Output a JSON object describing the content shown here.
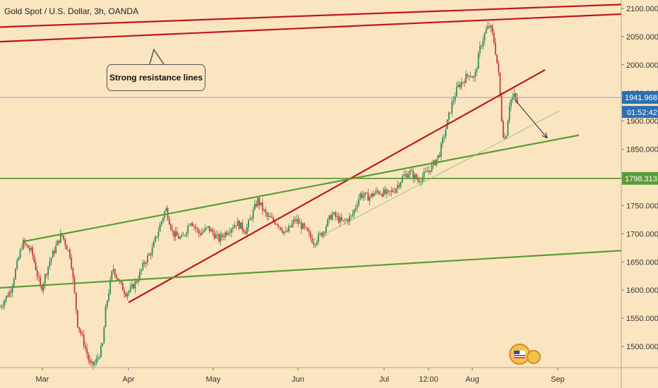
{
  "chart_data": {
    "type": "candlestick",
    "title": "Gold Spot / U.S. Dollar, 3h, OANDA",
    "ylim": [
      1450,
      2110
    ],
    "y_ticks": [
      2100,
      2050,
      2000,
      1950,
      1900,
      1850,
      1800,
      1750,
      1700,
      1650,
      1600,
      1550,
      1500
    ],
    "y_tick_labels": [
      "2100.000",
      "2050.000",
      "2000.000",
      "1950.000",
      "1900.000",
      "1850.000",
      "1800.000",
      "1750.000",
      "1700.000",
      "1650.000",
      "1600.000",
      "1550.000",
      "1500.000"
    ],
    "x_labels": [
      {
        "label": "Mar",
        "t": 60
      },
      {
        "label": "Apr",
        "t": 182
      },
      {
        "label": "May",
        "t": 302
      },
      {
        "label": "Jun",
        "t": 422
      },
      {
        "label": "Jul",
        "t": 544
      },
      {
        "label": "12:00",
        "t": 607
      },
      {
        "label": "Aug",
        "t": 669
      },
      {
        "label": "Sep",
        "t": 790
      }
    ],
    "price_path": [
      [
        0,
        1570
      ],
      [
        15,
        1600
      ],
      [
        32,
        1685
      ],
      [
        45,
        1668
      ],
      [
        58,
        1600
      ],
      [
        70,
        1650
      ],
      [
        87,
        1700
      ],
      [
        100,
        1660
      ],
      [
        110,
        1540
      ],
      [
        118,
        1510
      ],
      [
        128,
        1465
      ],
      [
        135,
        1470
      ],
      [
        145,
        1500
      ],
      [
        150,
        1570
      ],
      [
        160,
        1640
      ],
      [
        170,
        1610
      ],
      [
        178,
        1595
      ],
      [
        185,
        1600
      ],
      [
        195,
        1620
      ],
      [
        205,
        1650
      ],
      [
        215,
        1670
      ],
      [
        228,
        1720
      ],
      [
        235,
        1745
      ],
      [
        245,
        1700
      ],
      [
        258,
        1690
      ],
      [
        270,
        1725
      ],
      [
        282,
        1700
      ],
      [
        295,
        1710
      ],
      [
        310,
        1690
      ],
      [
        322,
        1705
      ],
      [
        335,
        1720
      ],
      [
        348,
        1705
      ],
      [
        365,
        1760
      ],
      [
        378,
        1730
      ],
      [
        392,
        1720
      ],
      [
        405,
        1700
      ],
      [
        418,
        1725
      ],
      [
        430,
        1710
      ],
      [
        445,
        1685
      ],
      [
        458,
        1705
      ],
      [
        470,
        1735
      ],
      [
        485,
        1720
      ],
      [
        498,
        1730
      ],
      [
        510,
        1770
      ],
      [
        522,
        1765
      ],
      [
        535,
        1775
      ],
      [
        550,
        1770
      ],
      [
        560,
        1780
      ],
      [
        570,
        1800
      ],
      [
        580,
        1810
      ],
      [
        592,
        1795
      ],
      [
        602,
        1805
      ],
      [
        612,
        1820
      ],
      [
        622,
        1840
      ],
      [
        630,
        1880
      ],
      [
        640,
        1930
      ],
      [
        648,
        1960
      ],
      [
        658,
        1975
      ],
      [
        665,
        1985
      ],
      [
        672,
        1975
      ],
      [
        680,
        2030
      ],
      [
        688,
        2060
      ],
      [
        694,
        2070
      ],
      [
        700,
        2040
      ],
      [
        706,
        1985
      ],
      [
        712,
        1880
      ],
      [
        716,
        1865
      ],
      [
        722,
        1935
      ],
      [
        728,
        1945
      ],
      [
        734,
        1930
      ]
    ],
    "last_price": {
      "value": 1941.968,
      "label": "1941.968",
      "countdown": "01:52:42"
    },
    "support_level": {
      "value": 1798.313,
      "label": "1798.313"
    },
    "lines": [
      {
        "name": "upper-resistance-line",
        "color": "#c0171b",
        "points": [
          [
            0,
            2067
          ],
          [
            880,
            2107
          ]
        ]
      },
      {
        "name": "lower-resistance-line",
        "color": "#c0171b",
        "points": [
          [
            0,
            2041
          ],
          [
            880,
            2090
          ]
        ]
      },
      {
        "name": "red-trendline",
        "color": "#c0171b",
        "points": [
          [
            182,
            1578
          ],
          [
            772,
            1991
          ]
        ]
      },
      {
        "name": "green-channel-upper",
        "color": "#5a9c38",
        "points": [
          [
            32,
            1686
          ],
          [
            820,
            1875
          ]
        ]
      },
      {
        "name": "green-channel-lower",
        "color": "#5a9c38",
        "points": [
          [
            0,
            1604
          ],
          [
            880,
            1670
          ]
        ]
      },
      {
        "name": "thin-support-line",
        "color": "#8db876",
        "points": [
          [
            440,
            1686
          ],
          [
            792,
            1918
          ]
        ]
      }
    ],
    "projection_arrow": {
      "from": [
        728,
        1940
      ],
      "to": [
        775,
        1870
      ]
    },
    "annotation": {
      "text": "Strong resistance lines",
      "anchor": [
        218,
        2027
      ]
    },
    "colors": {
      "up": "#2e8b57",
      "down": "#c23a3a",
      "background": "#fbe5c0",
      "price_line": "#5b9bd5",
      "last_price_badge": "#2b6fb2",
      "support_badge": "#5a9c38"
    }
  }
}
